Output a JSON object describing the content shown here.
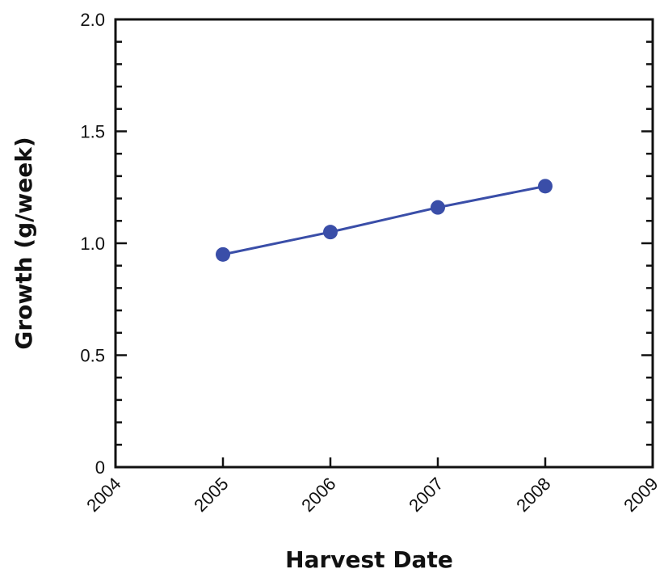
{
  "chart_data": {
    "type": "line",
    "title": "",
    "xlabel": "Harvest Date",
    "ylabel": "Growth (g/week)",
    "xlim": [
      2004,
      2009
    ],
    "ylim": [
      0,
      2.0
    ],
    "x_ticks": [
      "2004",
      "2005",
      "2006",
      "2007",
      "2008",
      "2009"
    ],
    "y_ticks": [
      {
        "value": 0,
        "label": "0"
      },
      {
        "value": 0.5,
        "label": "0.5"
      },
      {
        "value": 1.0,
        "label": "1.0"
      },
      {
        "value": 1.5,
        "label": "1.5"
      },
      {
        "value": 2.0,
        "label": "2.0"
      }
    ],
    "grid": false,
    "legend": "none",
    "series": [
      {
        "color": "#3a4ea8",
        "x": [
          2005,
          2006,
          2007,
          2008
        ],
        "y": [
          0.95,
          1.05,
          1.16,
          1.255
        ]
      }
    ]
  }
}
